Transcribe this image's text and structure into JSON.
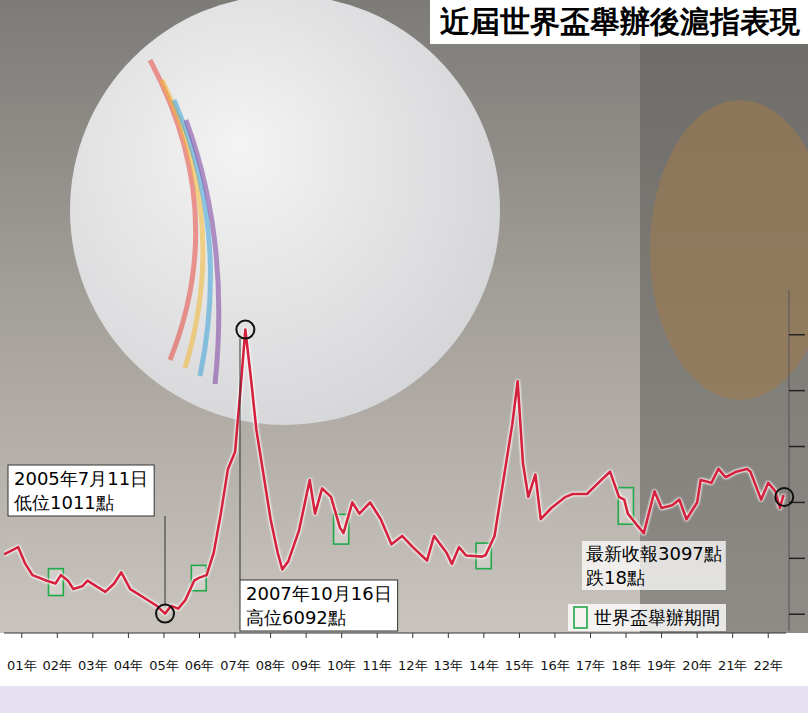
{
  "chart_data": {
    "type": "line",
    "title": "近屆世界盃舉辦後滬指表現",
    "color": "#d4213d",
    "x": [
      2001.0,
      2001.4,
      2001.6,
      2001.8,
      2002.0,
      2002.2,
      2002.45,
      2002.6,
      2002.8,
      2002.95,
      2003.2,
      2003.35,
      2003.6,
      2003.85,
      2004.1,
      2004.3,
      2004.55,
      2004.8,
      2005.05,
      2005.3,
      2005.53,
      2005.7,
      2005.9,
      2006.1,
      2006.35,
      2006.48,
      2006.7,
      2006.9,
      2007.1,
      2007.3,
      2007.5,
      2007.65,
      2007.79,
      2007.95,
      2008.1,
      2008.3,
      2008.5,
      2008.7,
      2008.83,
      2009.0,
      2009.3,
      2009.6,
      2009.75,
      2009.95,
      2010.2,
      2010.45,
      2010.55,
      2010.8,
      2011.0,
      2011.3,
      2011.6,
      2011.9,
      2012.2,
      2012.5,
      2012.9,
      2013.1,
      2013.45,
      2013.6,
      2013.8,
      2014.0,
      2014.45,
      2014.55,
      2014.8,
      2015.0,
      2015.3,
      2015.45,
      2015.6,
      2015.75,
      2015.95,
      2016.1,
      2016.4,
      2016.8,
      2017.0,
      2017.4,
      2017.8,
      2018.05,
      2018.3,
      2018.45,
      2018.55,
      2018.8,
      2019.0,
      2019.3,
      2019.5,
      2019.8,
      2020.0,
      2020.2,
      2020.5,
      2020.6,
      2020.9,
      2021.1,
      2021.3,
      2021.6,
      2021.9,
      2022.0,
      2022.3,
      2022.5,
      2022.7,
      2022.83,
      2022.92,
      2022.95
    ],
    "values": [
      2070,
      2200,
      1900,
      1700,
      1650,
      1600,
      1550,
      1700,
      1600,
      1450,
      1500,
      1600,
      1500,
      1400,
      1550,
      1750,
      1450,
      1350,
      1250,
      1150,
      1011,
      1150,
      1100,
      1250,
      1600,
      1650,
      1700,
      2100,
      2800,
      3600,
      3900,
      5000,
      6092,
      5200,
      4300,
      3500,
      2700,
      2100,
      1800,
      1950,
      2500,
      3400,
      2800,
      3250,
      3100,
      2550,
      2450,
      3000,
      2800,
      3000,
      2700,
      2250,
      2400,
      2200,
      1960,
      2400,
      2100,
      1900,
      2200,
      2050,
      2030,
      2060,
      2400,
      3200,
      4400,
      5166,
      3700,
      3100,
      3500,
      2700,
      2900,
      3100,
      3150,
      3150,
      3400,
      3550,
      3100,
      3050,
      2800,
      2600,
      2450,
      3200,
      2900,
      2950,
      3050,
      2700,
      3000,
      3400,
      3350,
      3600,
      3450,
      3550,
      3600,
      3550,
      3050,
      3350,
      3200,
      2900,
      3115,
      3097
    ],
    "xlim": [
      2001,
      2023
    ],
    "xticks": [
      {
        "value": 2001.5,
        "label": "01年"
      },
      {
        "value": 2002.5,
        "label": "02年"
      },
      {
        "value": 2003.5,
        "label": "03年"
      },
      {
        "value": 2004.5,
        "label": "04年"
      },
      {
        "value": 2005.5,
        "label": "05年"
      },
      {
        "value": 2006.5,
        "label": "06年"
      },
      {
        "value": 2007.5,
        "label": "07年"
      },
      {
        "value": 2008.5,
        "label": "08年"
      },
      {
        "value": 2009.5,
        "label": "09年"
      },
      {
        "value": 2010.5,
        "label": "10年"
      },
      {
        "value": 2011.5,
        "label": "11年"
      },
      {
        "value": 2012.5,
        "label": "12年"
      },
      {
        "value": 2013.5,
        "label": "13年"
      },
      {
        "value": 2014.5,
        "label": "14年"
      },
      {
        "value": 2015.5,
        "label": "15年"
      },
      {
        "value": 2016.5,
        "label": "16年"
      },
      {
        "value": 2017.5,
        "label": "17年"
      },
      {
        "value": 2018.5,
        "label": "18年"
      },
      {
        "value": 2019.5,
        "label": "19年"
      },
      {
        "value": 2020.5,
        "label": "20年"
      },
      {
        "value": 2021.5,
        "label": "21年"
      },
      {
        "value": 2022.5,
        "label": "22年"
      }
    ],
    "ylim": [
      700,
      6800
    ],
    "yticks": [
      1000,
      2000,
      3000,
      4000,
      5000,
      6000
    ],
    "tick_labels": "x",
    "grid": false,
    "legend": "bottom-right",
    "annotations": [
      {
        "x": 2005.53,
        "y": 1011,
        "text": [
          "2005年7月11日",
          "低位1011點"
        ]
      },
      {
        "x": 2007.79,
        "y": 6092,
        "text": [
          "2007年10月16日",
          "高位6092點"
        ]
      },
      {
        "x": 2022.95,
        "y": 3097,
        "text": [
          "最新收報3097點",
          "跌18點"
        ]
      }
    ],
    "highlights": {
      "label": "世界盃舉辦期間",
      "color": "#22a84a",
      "periods": [
        {
          "start": 2002.42,
          "end": 2002.5
        },
        {
          "start": 2006.44,
          "end": 2006.52
        },
        {
          "start": 2010.44,
          "end": 2010.53
        },
        {
          "start": 2014.45,
          "end": 2014.54
        },
        {
          "start": 2018.45,
          "end": 2018.54
        }
      ]
    }
  }
}
